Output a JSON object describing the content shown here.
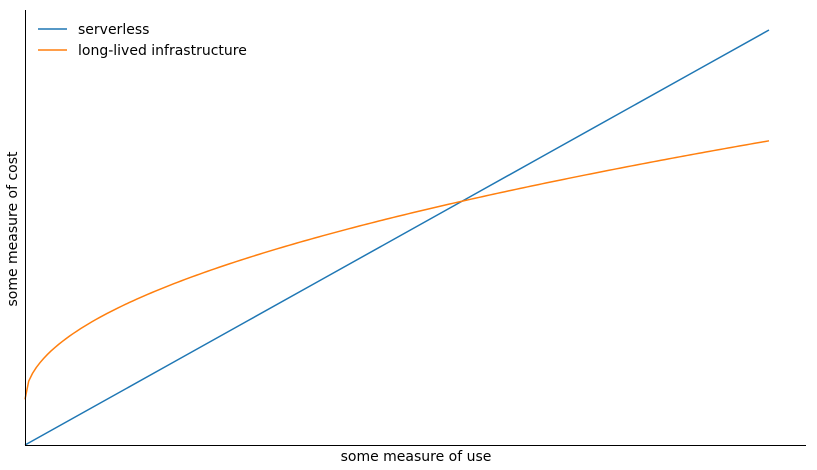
{
  "chart_data": {
    "type": "line",
    "title": "",
    "xlabel": "some measure of use",
    "ylabel": "some measure of cost",
    "xlim": [
      0,
      1
    ],
    "ylim": [
      0,
      1
    ],
    "grid": false,
    "legend": "top-left",
    "x_ticks": [],
    "y_ticks": [],
    "series": [
      {
        "name": "serverless",
        "color": "#1f77b4",
        "x": [
          0,
          0.1,
          0.2,
          0.3,
          0.4,
          0.5,
          0.6,
          0.7,
          0.8,
          0.9,
          1.0
        ],
        "y": [
          0.0,
          0.1,
          0.2,
          0.3,
          0.4,
          0.5,
          0.6,
          0.7,
          0.8,
          0.9,
          1.0
        ]
      },
      {
        "name": "long-lived infrastructure",
        "color": "#ff7f0e",
        "x": [
          0,
          0.01,
          0.02,
          0.05,
          0.1,
          0.15,
          0.2,
          0.3,
          0.4,
          0.5,
          0.58,
          0.6,
          0.7,
          0.8,
          0.9,
          1.0
        ],
        "y": [
          0.11,
          0.185,
          0.21,
          0.259,
          0.307,
          0.343,
          0.372,
          0.42,
          0.46,
          0.495,
          0.58,
          0.545,
          0.574,
          0.608,
          0.64,
          0.733
        ]
      }
    ]
  }
}
